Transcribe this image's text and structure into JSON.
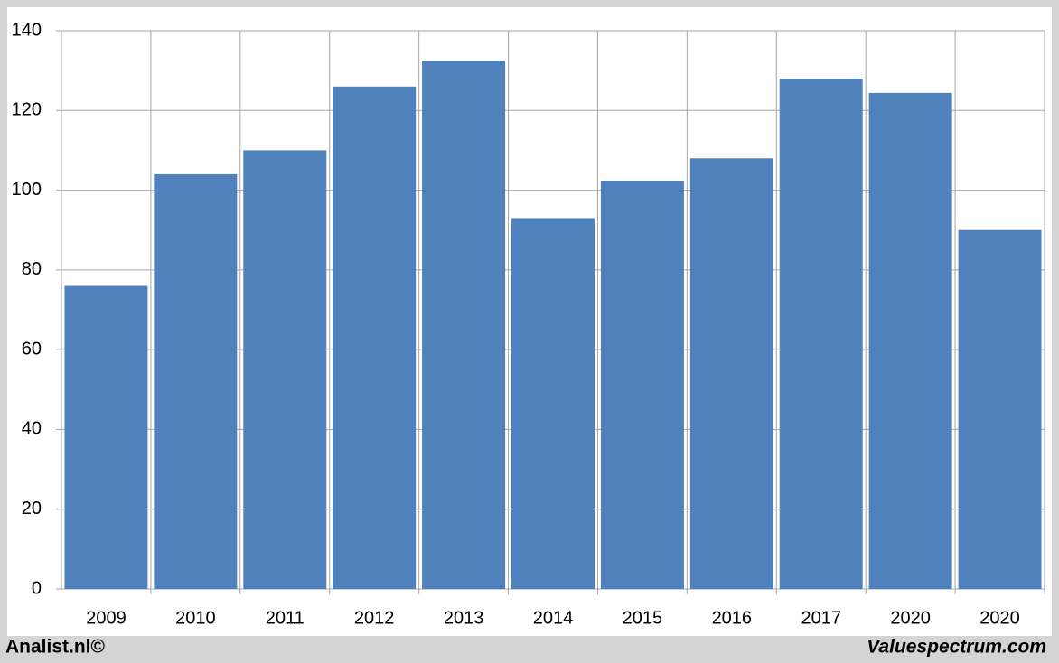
{
  "chart_data": {
    "type": "bar",
    "categories": [
      "2009",
      "2010",
      "2011",
      "2012",
      "2013",
      "2014",
      "2015",
      "2016",
      "2017",
      "2020",
      "2020"
    ],
    "values": [
      76,
      104,
      110,
      126,
      132.5,
      93,
      102.4,
      108,
      128,
      124.4,
      90
    ],
    "color": "#4f81bd",
    "ylim": [
      0,
      140
    ],
    "yticks": [
      0,
      20,
      40,
      60,
      80,
      100,
      120,
      140
    ],
    "grid": true
  },
  "footer": {
    "left": "Analist.nl©",
    "right": "Valuespectrum.com"
  }
}
